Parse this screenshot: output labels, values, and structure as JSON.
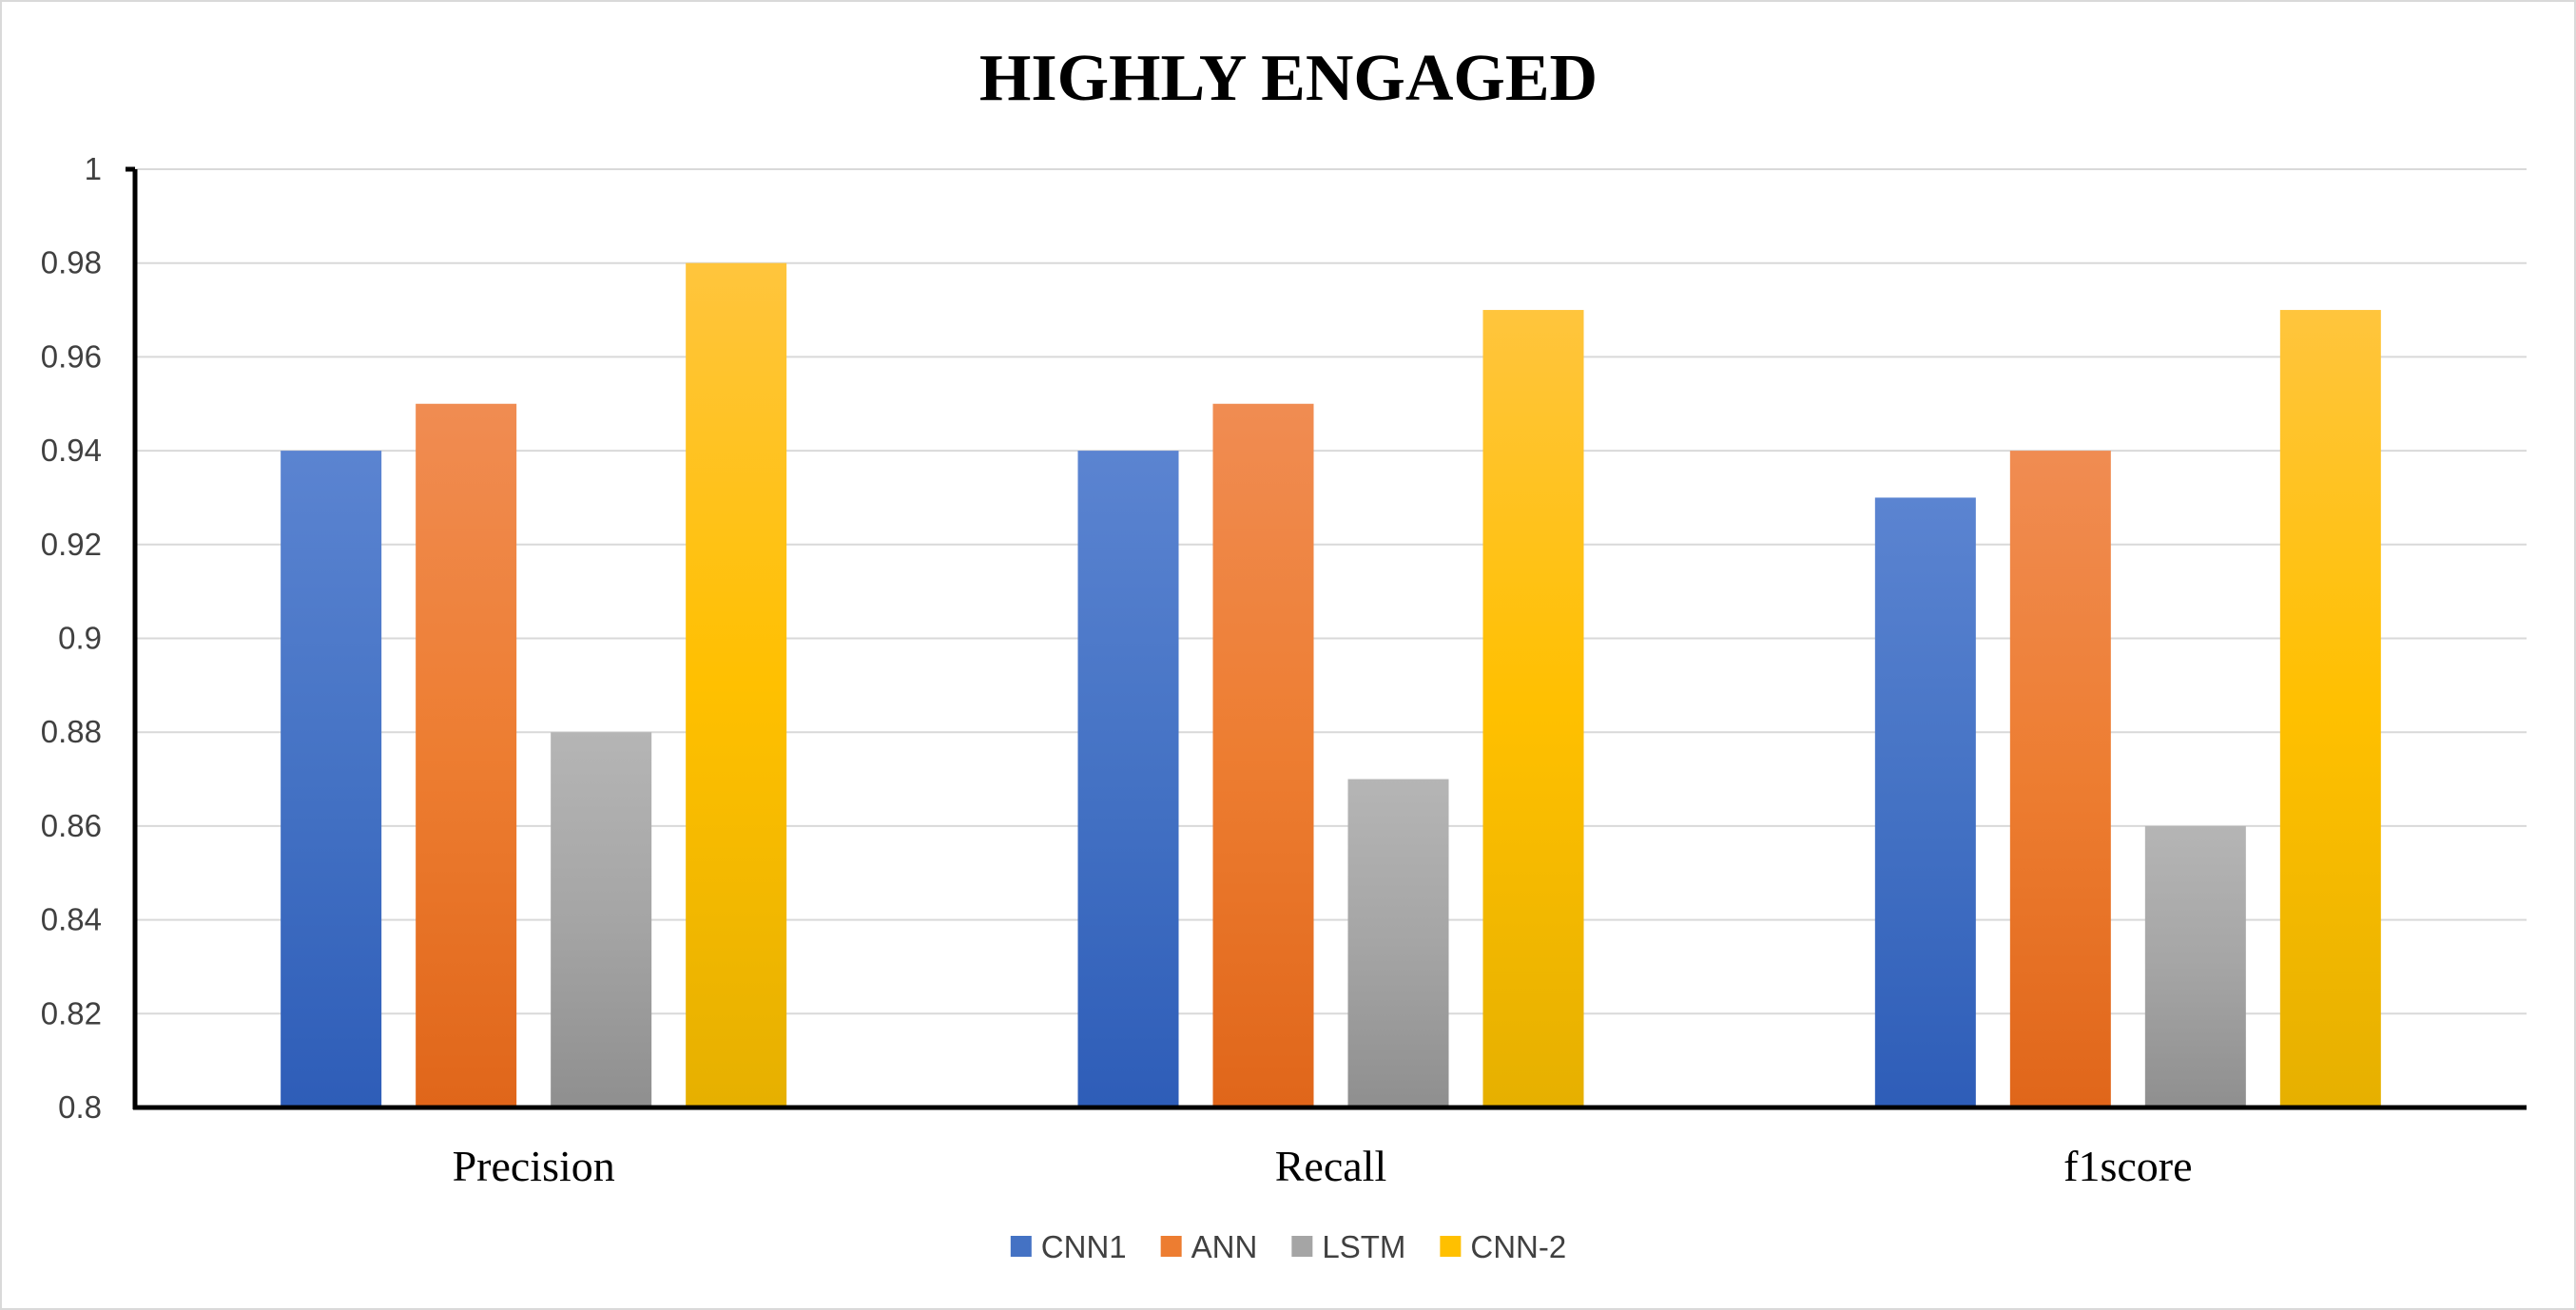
{
  "chart_data": {
    "type": "bar",
    "title": "HIGHLY ENGAGED",
    "categories": [
      "Precision",
      "Recall",
      "f1score"
    ],
    "series": [
      {
        "name": "CNN1",
        "values": [
          0.94,
          0.94,
          0.93
        ],
        "color": "#4472C4",
        "color_top": "#5B84D1",
        "color_bottom": "#2E5DB8"
      },
      {
        "name": "ANN",
        "values": [
          0.95,
          0.95,
          0.94
        ],
        "color": "#ED7D31",
        "color_top": "#F08C52",
        "color_bottom": "#E0661A"
      },
      {
        "name": "LSTM",
        "values": [
          0.88,
          0.87,
          0.86
        ],
        "color": "#A5A5A5",
        "color_top": "#B5B5B5",
        "color_bottom": "#8F8F8F"
      },
      {
        "name": "CNN-2",
        "values": [
          0.98,
          0.97,
          0.97
        ],
        "color": "#FFC000",
        "color_top": "#FFC53D",
        "color_bottom": "#E6B000"
      }
    ],
    "ylim": [
      0.8,
      1
    ],
    "yticks": [
      "0.8",
      "0.82",
      "0.84",
      "0.86",
      "0.88",
      "0.9",
      "0.92",
      "0.94",
      "0.96",
      "0.98",
      "1"
    ],
    "grid": true,
    "legend_position": "bottom"
  }
}
